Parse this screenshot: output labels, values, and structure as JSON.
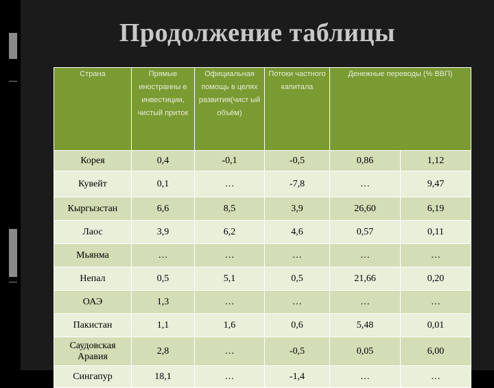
{
  "title": "Продолжение таблицы",
  "table": {
    "headers": [
      "Страна",
      "Прямые иностранны е инвестиции, чистый приток",
      "Официальная помощь в целях развития(чист ый объём)",
      "Потоки частного капитала",
      "Денежные переводы (% ВВП)",
      ""
    ],
    "rows": [
      [
        "Корея",
        "0,4",
        "-0,1",
        "-0,5",
        "0,86",
        "1,12"
      ],
      [
        "Кувейт",
        "0,1",
        "…",
        "-7,8",
        "…",
        "9,47"
      ],
      [
        "Кыргызстан",
        "6,6",
        "8,5",
        "3,9",
        "26,60",
        "6,19"
      ],
      [
        "Лаос",
        "3,9",
        "6,2",
        "4,6",
        "0,57",
        "0,11"
      ],
      [
        "Мьянма",
        "…",
        "…",
        "…",
        "…",
        "…"
      ],
      [
        "Непал",
        "0,5",
        "5,1",
        "0,5",
        "21,66",
        "0,20"
      ],
      [
        "ОАЭ",
        "1,3",
        "…",
        "…",
        "…",
        "…"
      ],
      [
        "Пакистан",
        "1,1",
        "1,6",
        "0,6",
        "5,48",
        "0,01"
      ],
      [
        "Саудовская Аравия",
        "2,8",
        "…",
        "-0,5",
        "0,05",
        "6,00"
      ],
      [
        "Сингапур",
        "18,1",
        "…",
        "-1,4",
        "…",
        "…"
      ]
    ]
  }
}
